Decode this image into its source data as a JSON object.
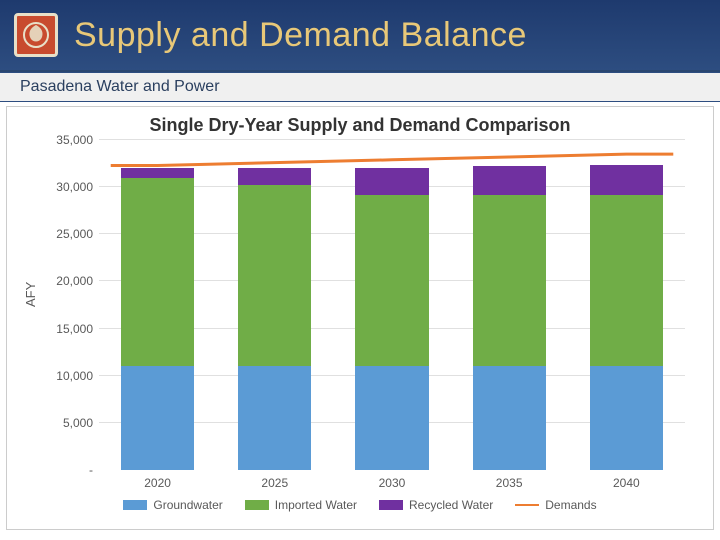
{
  "header": {
    "title": "Supply and Demand Balance",
    "subtitle": "Pasadena Water and Power",
    "title_color": "#e8c878",
    "bg_gradient_top": "#1e3a6e",
    "bg_gradient_bottom": "#2d4d80",
    "logo_bg": "#c84b2e",
    "logo_border": "#e8e0c8"
  },
  "chart": {
    "type": "stacked-bar-with-line",
    "title": "Single Dry-Year Supply and Demand Comparison",
    "title_fontsize": 18,
    "ylabel": "AFY",
    "label_fontsize": 13,
    "ylim": [
      0,
      35000
    ],
    "ytick_step": 5000,
    "yticks": [
      "-",
      "5,000",
      "10,000",
      "15,000",
      "20,000",
      "25,000",
      "30,000",
      "35,000"
    ],
    "categories": [
      "2020",
      "2025",
      "2030",
      "2035",
      "2040"
    ],
    "series": [
      {
        "name": "Groundwater",
        "color": "#5b9bd5",
        "values": [
          11000,
          11000,
          11000,
          11000,
          11000
        ]
      },
      {
        "name": "Imported Water",
        "color": "#70ad47",
        "values": [
          20000,
          19200,
          18200,
          18200,
          18200
        ]
      },
      {
        "name": "Recycled Water",
        "color": "#7030a0",
        "values": [
          1000,
          1800,
          2800,
          3000,
          3200
        ]
      }
    ],
    "line": {
      "name": "Demands",
      "color": "#ed7d31",
      "values": [
        32300,
        32600,
        32900,
        33200,
        33500
      ],
      "width": 3
    },
    "grid_color": "#e0e0e0",
    "background_color": "#ffffff",
    "bar_width": 0.78,
    "tick_fontsize": 12,
    "tick_color": "#595959"
  }
}
